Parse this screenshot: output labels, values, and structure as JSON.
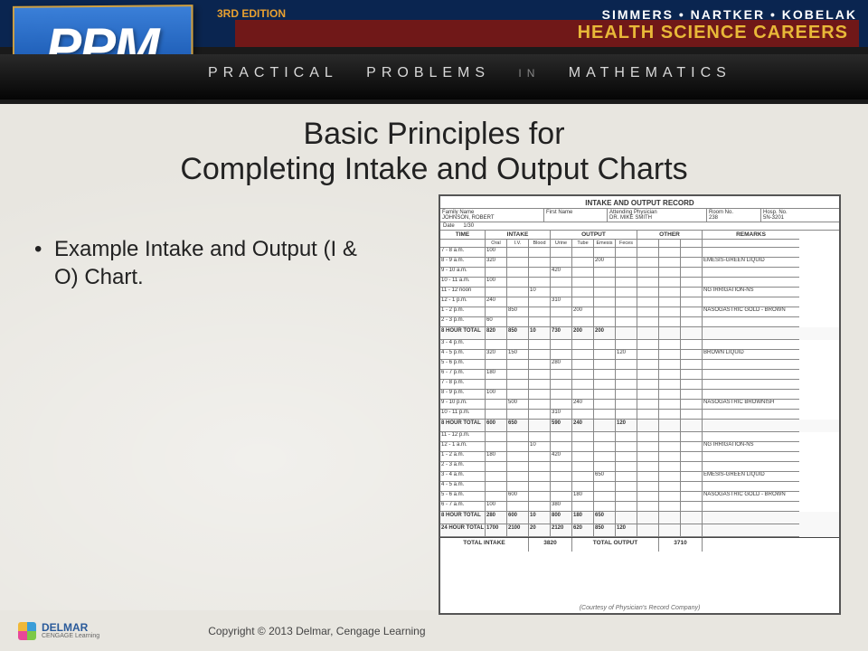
{
  "banner": {
    "ppm": "PPM",
    "edition": "3RD EDITION",
    "authors": "SIMMERS • NARTKER • KOBELAK",
    "hsc": "HEALTH SCIENCE CAREERS",
    "subtitle_parts": [
      "PRACTICAL",
      "PROBLEMS",
      "IN",
      "MATHEMATICS"
    ]
  },
  "slide": {
    "title_line1": "Basic Principles for",
    "title_line2": "Completing Intake and Output Charts",
    "bullet": "Example Intake and Output (I & O) Chart."
  },
  "chart": {
    "title": "INTAKE AND OUTPUT RECORD",
    "header": {
      "family_label": "Family Name",
      "family": "JOHNSON, ROBERT",
      "first_label": "First Name",
      "first": "",
      "phys_label": "Attending Physician",
      "phys": "DR. MIKE SMITH",
      "room_label": "Room No.",
      "room": "238",
      "hosp_label": "Hosp. No.",
      "hosp": "5N-3201"
    },
    "date_label": "Date",
    "date": "1/30",
    "section_hdrs": [
      "TIME",
      "INTAKE",
      "OUTPUT",
      "OTHER",
      "REMARKS"
    ],
    "sub_hdrs": [
      "Oral",
      "I.V.",
      "Blood",
      "Urine",
      "Tube",
      "Emesis",
      "Feces",
      "",
      "",
      ""
    ],
    "rows": [
      {
        "t": "7 - 8 a.m.",
        "o": "100",
        "iv": "",
        "b": "",
        "u": "",
        "tu": "",
        "e": "",
        "f": "",
        "x1": "",
        "x2": "",
        "x3": "",
        "r": ""
      },
      {
        "t": "8 - 9 a.m.",
        "o": "320",
        "iv": "",
        "b": "",
        "u": "",
        "tu": "",
        "e": "200",
        "f": "",
        "x1": "",
        "x2": "",
        "x3": "",
        "r": "EMESIS-GREEN LIQUID"
      },
      {
        "t": "9 - 10 a.m.",
        "o": "",
        "iv": "",
        "b": "",
        "u": "420",
        "tu": "",
        "e": "",
        "f": "",
        "x1": "",
        "x2": "",
        "x3": "",
        "r": ""
      },
      {
        "t": "10 - 11 a.m.",
        "o": "100",
        "iv": "",
        "b": "",
        "u": "",
        "tu": "",
        "e": "",
        "f": "",
        "x1": "",
        "x2": "",
        "x3": "",
        "r": ""
      },
      {
        "t": "11 - 12 noon",
        "o": "",
        "iv": "",
        "b": "10",
        "u": "",
        "tu": "",
        "e": "",
        "f": "",
        "x1": "",
        "x2": "",
        "x3": "",
        "r": "NG IRRIGATION-NS"
      },
      {
        "t": "12 - 1 p.m.",
        "o": "240",
        "iv": "",
        "b": "",
        "u": "310",
        "tu": "",
        "e": "",
        "f": "",
        "x1": "",
        "x2": "",
        "x3": "",
        "r": ""
      },
      {
        "t": "1 - 2 p.m.",
        "o": "",
        "iv": "850",
        "b": "",
        "u": "",
        "tu": "200",
        "e": "",
        "f": "",
        "x1": "",
        "x2": "",
        "x3": "",
        "r": "NASOGASTRIC GOLD - BROWN"
      },
      {
        "t": "2 - 3 p.m.",
        "o": "60",
        "iv": "",
        "b": "",
        "u": "",
        "tu": "",
        "e": "",
        "f": "",
        "x1": "",
        "x2": "",
        "x3": "",
        "r": ""
      },
      {
        "t": "8 HOUR TOTAL",
        "o": "820",
        "iv": "850",
        "b": "10",
        "u": "730",
        "tu": "200",
        "e": "200",
        "f": "",
        "x1": "",
        "x2": "",
        "x3": "",
        "r": "",
        "total": true
      },
      {
        "t": "3 - 4 p.m.",
        "o": "",
        "iv": "",
        "b": "",
        "u": "",
        "tu": "",
        "e": "",
        "f": "",
        "x1": "",
        "x2": "",
        "x3": "",
        "r": ""
      },
      {
        "t": "4 - 5 p.m.",
        "o": "320",
        "iv": "150",
        "b": "",
        "u": "",
        "tu": "",
        "e": "",
        "f": "120",
        "x1": "",
        "x2": "",
        "x3": "",
        "r": "BROWN LIQUID"
      },
      {
        "t": "5 - 6 p.m.",
        "o": "",
        "iv": "",
        "b": "",
        "u": "280",
        "tu": "",
        "e": "",
        "f": "",
        "x1": "",
        "x2": "",
        "x3": "",
        "r": ""
      },
      {
        "t": "6 - 7 p.m.",
        "o": "180",
        "iv": "",
        "b": "",
        "u": "",
        "tu": "",
        "e": "",
        "f": "",
        "x1": "",
        "x2": "",
        "x3": "",
        "r": ""
      },
      {
        "t": "7 - 8 p.m.",
        "o": "",
        "iv": "",
        "b": "",
        "u": "",
        "tu": "",
        "e": "",
        "f": "",
        "x1": "",
        "x2": "",
        "x3": "",
        "r": ""
      },
      {
        "t": "8 - 9 p.m.",
        "o": "100",
        "iv": "",
        "b": "",
        "u": "",
        "tu": "",
        "e": "",
        "f": "",
        "x1": "",
        "x2": "",
        "x3": "",
        "r": ""
      },
      {
        "t": "9 - 10 p.m.",
        "o": "",
        "iv": "500",
        "b": "",
        "u": "",
        "tu": "240",
        "e": "",
        "f": "",
        "x1": "",
        "x2": "",
        "x3": "",
        "r": "NASOGASTRIC BROWNISH"
      },
      {
        "t": "10 - 11 p.m.",
        "o": "",
        "iv": "",
        "b": "",
        "u": "310",
        "tu": "",
        "e": "",
        "f": "",
        "x1": "",
        "x2": "",
        "x3": "",
        "r": ""
      },
      {
        "t": "8 HOUR TOTAL",
        "o": "600",
        "iv": "650",
        "b": "",
        "u": "590",
        "tu": "240",
        "e": "",
        "f": "120",
        "x1": "",
        "x2": "",
        "x3": "",
        "r": "",
        "total": true
      },
      {
        "t": "11 - 12 p.m.",
        "o": "",
        "iv": "",
        "b": "",
        "u": "",
        "tu": "",
        "e": "",
        "f": "",
        "x1": "",
        "x2": "",
        "x3": "",
        "r": ""
      },
      {
        "t": "12 - 1 a.m.",
        "o": "",
        "iv": "",
        "b": "10",
        "u": "",
        "tu": "",
        "e": "",
        "f": "",
        "x1": "",
        "x2": "",
        "x3": "",
        "r": "NG IRRIGATION-NS"
      },
      {
        "t": "1 - 2 a.m.",
        "o": "180",
        "iv": "",
        "b": "",
        "u": "420",
        "tu": "",
        "e": "",
        "f": "",
        "x1": "",
        "x2": "",
        "x3": "",
        "r": ""
      },
      {
        "t": "2 - 3 a.m.",
        "o": "",
        "iv": "",
        "b": "",
        "u": "",
        "tu": "",
        "e": "",
        "f": "",
        "x1": "",
        "x2": "",
        "x3": "",
        "r": ""
      },
      {
        "t": "3 - 4 a.m.",
        "o": "",
        "iv": "",
        "b": "",
        "u": "",
        "tu": "",
        "e": "650",
        "f": "",
        "x1": "",
        "x2": "",
        "x3": "",
        "r": "EMESIS-GREEN LIQUID"
      },
      {
        "t": "4 - 5 a.m.",
        "o": "",
        "iv": "",
        "b": "",
        "u": "",
        "tu": "",
        "e": "",
        "f": "",
        "x1": "",
        "x2": "",
        "x3": "",
        "r": ""
      },
      {
        "t": "5 - 6 a.m.",
        "o": "",
        "iv": "600",
        "b": "",
        "u": "",
        "tu": "180",
        "e": "",
        "f": "",
        "x1": "",
        "x2": "",
        "x3": "",
        "r": "NASOGASTRIC GOLD - BROWN"
      },
      {
        "t": "6 - 7 a.m.",
        "o": "100",
        "iv": "",
        "b": "",
        "u": "380",
        "tu": "",
        "e": "",
        "f": "",
        "x1": "",
        "x2": "",
        "x3": "",
        "r": ""
      },
      {
        "t": "8 HOUR TOTAL",
        "o": "280",
        "iv": "600",
        "b": "10",
        "u": "800",
        "tu": "180",
        "e": "650",
        "f": "",
        "x1": "",
        "x2": "",
        "x3": "",
        "r": "",
        "total": true
      },
      {
        "t": "24 HOUR TOTAL",
        "o": "1700",
        "iv": "2100",
        "b": "20",
        "u": "2120",
        "tu": "620",
        "e": "850",
        "f": "120",
        "x1": "",
        "x2": "",
        "x3": "",
        "r": "",
        "total": true
      }
    ],
    "grand": {
      "intake_label": "TOTAL INTAKE",
      "intake": "3820",
      "output_label": "TOTAL OUTPUT",
      "output": "3710"
    },
    "caption": "(Courtesy of Physician's Record Company)"
  },
  "footer": {
    "brand": "DELMAR",
    "brand_sub": "CENGAGE Learning",
    "copyright": "Copyright © 2013 Delmar, Cengage Learning"
  }
}
